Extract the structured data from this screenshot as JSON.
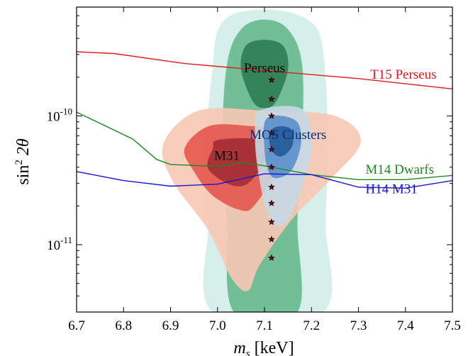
{
  "chart_data": {
    "type": "line",
    "title": "",
    "xlabel_main": "m",
    "xlabel_sub": "s",
    "xlabel_unit": " [keV]",
    "ylabel_main": "sin",
    "ylabel_sup": "2",
    "ylabel_rest": " 2θ",
    "x_scale": "linear",
    "y_scale": "log",
    "xlim": [
      6.7,
      7.5
    ],
    "ylim": [
      3e-12,
      7e-10
    ],
    "x_ticks": [
      6.7,
      6.8,
      6.9,
      7.0,
      7.1,
      7.2,
      7.3,
      7.4,
      7.5
    ],
    "x_tick_labels": [
      "6.7",
      "6.8",
      "6.9",
      "7.0",
      "7.1",
      "7.2",
      "7.3",
      "7.4",
      "7.5"
    ],
    "y_ticks": [
      {
        "value": 1e-10,
        "base": "10",
        "exp": "-10"
      },
      {
        "value": 1e-11,
        "base": "10",
        "exp": "-11"
      }
    ],
    "grid": false,
    "series": [
      {
        "name": "T15 Perseus",
        "color": "#e8161b",
        "x": [
          6.7,
          6.78,
          6.93,
          7.1,
          7.3,
          7.5
        ],
        "y": [
          3.15e-10,
          3.05e-10,
          2.55e-10,
          2.25e-10,
          1.95e-10,
          1.62e-10
        ]
      },
      {
        "name": "M14 Dwarfs",
        "color": "#1e8a1e",
        "x": [
          6.7,
          6.82,
          6.87,
          6.9,
          7.0,
          7.05,
          7.1,
          7.2,
          7.3,
          7.4,
          7.5
        ],
        "y": [
          1.07e-10,
          6.6e-11,
          4.6e-11,
          4.2e-11,
          4.05e-11,
          4.35e-11,
          4.1e-11,
          3.5e-11,
          3.2e-11,
          3.2e-11,
          3.45e-11
        ]
      },
      {
        "name": "H14 M31",
        "color": "#1515d6",
        "x": [
          6.7,
          6.8,
          6.9,
          7.0,
          7.1,
          7.2,
          7.3,
          7.4,
          7.5
        ],
        "y": [
          3.7e-11,
          3.15e-11,
          2.85e-11,
          2.95e-11,
          3.55e-11,
          3.5e-11,
          2.8e-11,
          2.75e-11,
          3.15e-11
        ]
      }
    ],
    "line_labels": [
      {
        "text": "T15 Perseus",
        "color": "#e8161b",
        "x": 7.325,
        "y": 2.05e-10
      },
      {
        "text": "M14 Dwarfs",
        "color": "#1e8a1e",
        "x": 7.315,
        "y": 3.75e-11
      },
      {
        "text": "H14 M31",
        "color": "#1515d6",
        "x": 7.315,
        "y": 2.65e-11
      }
    ],
    "regions": [
      {
        "name": "Perseus",
        "label_color": "#000000",
        "label_x": 7.1,
        "label_y": 2.3e-10,
        "levels": [
          {
            "color": "#d3ede9",
            "points": [
              [
                6.99,
                3e-12
              ],
              [
                6.98,
                1.5e-11
              ],
              [
                6.975,
                6e-11
              ],
              [
                6.99,
                2.5e-10
              ],
              [
                7.0,
                4.5e-10
              ],
              [
                7.03,
                6.1e-10
              ],
              [
                7.1,
                6.7e-10
              ],
              [
                7.17,
                6.1e-10
              ],
              [
                7.215,
                4.5e-10
              ],
              [
                7.23,
                2e-10
              ],
              [
                7.235,
                6e-11
              ],
              [
                7.23,
                1.5e-11
              ],
              [
                7.225,
                3e-12
              ]
            ]
          },
          {
            "color": "#67b98e",
            "points": [
              [
                7.035,
                3e-12
              ],
              [
                7.02,
                1.5e-11
              ],
              [
                7.01,
                6e-11
              ],
              [
                7.02,
                2.5e-10
              ],
              [
                7.05,
                4.7e-10
              ],
              [
                7.1,
                5.6e-10
              ],
              [
                7.15,
                4.7e-10
              ],
              [
                7.18,
                2.5e-10
              ],
              [
                7.18,
                6e-11
              ],
              [
                7.17,
                1.5e-11
              ],
              [
                7.17,
                3e-12
              ]
            ]
          },
          {
            "color": "#2f7d52",
            "points": [
              [
                7.075,
                1.3e-10
              ],
              [
                7.05,
                2.3e-10
              ],
              [
                7.06,
                3.5e-10
              ],
              [
                7.1,
                3.9e-10
              ],
              [
                7.14,
                3.5e-10
              ],
              [
                7.15,
                2.3e-10
              ],
              [
                7.125,
                1.3e-10
              ],
              [
                7.1,
                1.15e-10
              ]
            ]
          }
        ]
      },
      {
        "name": "M31",
        "label_color": "#000000",
        "label_x": 7.02,
        "label_y": 4.8e-11,
        "levels": [
          {
            "color": "#f8c8b4",
            "points": [
              [
                6.96,
                1.1e-10
              ],
              [
                7.1,
                1.1e-10
              ],
              [
                7.25,
                1e-10
              ],
              [
                7.305,
                6.3e-11
              ],
              [
                7.24,
                3.2e-11
              ],
              [
                7.16,
                1.6e-11
              ],
              [
                7.09,
                7e-12
              ],
              [
                7.065,
                4.4e-12
              ],
              [
                7.03,
                5.5e-12
              ],
              [
                6.98,
                1.3e-11
              ],
              [
                6.905,
                3.1e-11
              ],
              [
                6.885,
                6.1e-11
              ]
            ]
          },
          {
            "color": "#e4574f",
            "points": [
              [
                6.98,
                8.3e-11
              ],
              [
                7.06,
                8.4e-11
              ],
              [
                7.14,
                7.4e-11
              ],
              [
                7.13,
                4.1e-11
              ],
              [
                7.08,
                2.05e-11
              ],
              [
                7.05,
                1.85e-11
              ],
              [
                6.99,
                2.4e-11
              ],
              [
                6.95,
                3.7e-11
              ],
              [
                6.93,
                5.6e-11
              ]
            ]
          },
          {
            "color": "#a32c34",
            "points": [
              [
                7.0,
                6.5e-11
              ],
              [
                7.08,
                6.6e-11
              ],
              [
                7.11,
                5.3e-11
              ],
              [
                7.07,
                3.1e-11
              ],
              [
                7.03,
                2.9e-11
              ],
              [
                6.98,
                3.9e-11
              ],
              [
                6.99,
                5.6e-11
              ]
            ]
          }
        ]
      },
      {
        "name": "MOS Clusters",
        "label_color": "#0e2c6b",
        "label_x": 7.15,
        "label_y": 7e-11,
        "levels": [
          {
            "color": "#c6d8e6",
            "points": [
              [
                7.09,
                1.1e-10
              ],
              [
                7.18,
                1.13e-10
              ],
              [
                7.2,
                6e-11
              ],
              [
                7.185,
                3.2e-11
              ],
              [
                7.15,
                1.55e-11
              ],
              [
                7.12,
                1.45e-11
              ],
              [
                7.1,
                2.1e-11
              ],
              [
                7.085,
                4e-11
              ],
              [
                7.08,
                7e-11
              ]
            ]
          },
          {
            "color": "#5a8fcb",
            "points": [
              [
                7.105,
                9.6e-11
              ],
              [
                7.165,
                9.3e-11
              ],
              [
                7.178,
                6.3e-11
              ],
              [
                7.16,
                3.9e-11
              ],
              [
                7.13,
                3.3e-11
              ],
              [
                7.11,
                3.6e-11
              ],
              [
                7.1,
                5.5e-11
              ]
            ]
          },
          {
            "color": "#245a99",
            "points": [
              [
                7.12,
                8.1e-11
              ],
              [
                7.155,
                8e-11
              ],
              [
                7.16,
                6e-11
              ],
              [
                7.14,
                4.9e-11
              ],
              [
                7.12,
                5.1e-11
              ],
              [
                7.11,
                6.5e-11
              ]
            ]
          }
        ]
      }
    ],
    "stars": {
      "x": 7.115,
      "y": [
        1.9e-10,
        1.35e-10,
        1e-10,
        7.4e-11,
        5.5e-11,
        4e-11,
        2.8e-11,
        2.1e-11,
        1.5e-11,
        1.1e-11,
        7.9e-12
      ],
      "fill": "#8b0000",
      "stroke": "#000000"
    }
  }
}
